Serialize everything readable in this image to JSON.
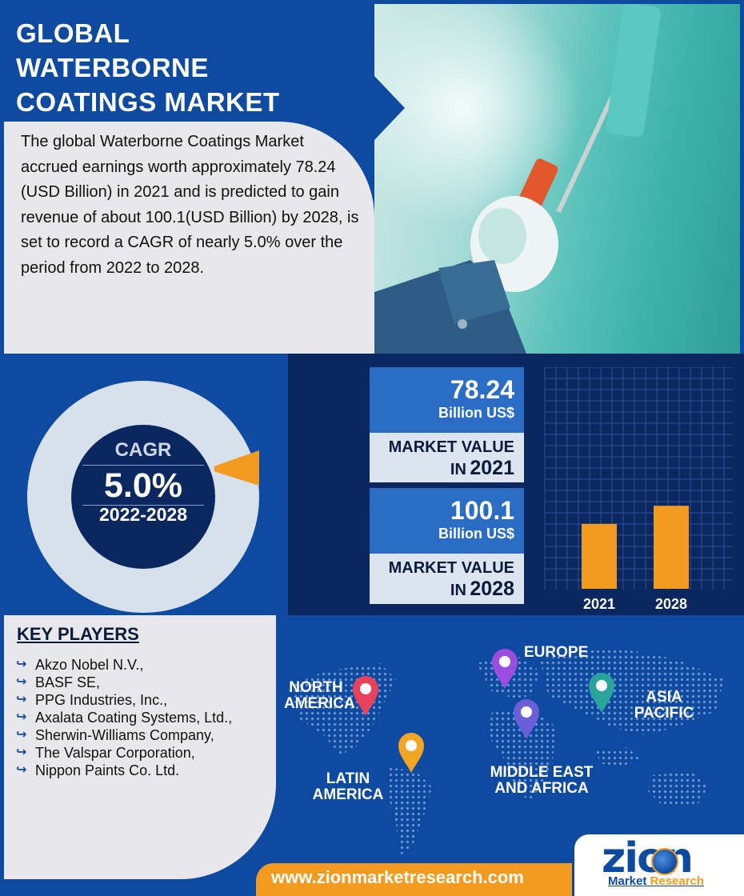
{
  "header": {
    "title_line1": "GLOBAL",
    "title_line2": "WATERBORNE",
    "title_line3": "COATINGS MARKET",
    "description": "The global Waterborne Coatings Market accrued earnings worth approximately 78.24 (USD Billion) in 2021 and is predicted to gain revenue of about 100.1(USD Billion) by 2028, is set to record a CAGR of nearly 5.0% over the period from 2022 to 2028."
  },
  "cagr": {
    "label": "CAGR",
    "value": "5.0%",
    "period": "2022-2028",
    "fraction": 0.05
  },
  "market_values": [
    {
      "value": "78.24",
      "unit": "Billion US$",
      "label": "MARKET VALUE",
      "prefix": "IN",
      "year": "2021"
    },
    {
      "value": "100.1",
      "unit": "Billion US$",
      "label": "MARKET VALUE",
      "prefix": "IN",
      "year": "2028"
    }
  ],
  "chart_data": {
    "type": "bar",
    "categories": [
      "2021",
      "2028"
    ],
    "values": [
      78.24,
      100.1
    ],
    "title": "",
    "xlabel": "",
    "ylabel": "",
    "grid": true,
    "colors": {
      "bar": "#f39a20",
      "grid": "#2c4f93",
      "background": "#0a2760"
    }
  },
  "key_players": {
    "title": "KEY PLAYERS",
    "items": [
      "Akzo Nobel N.V.,",
      "BASF SE,",
      "PPG Industries, Inc.,",
      "Axalata Coating Systems, Ltd.,",
      "Sherwin-Williams Company,",
      "The Valspar Corporation,",
      "Nippon Paints Co. Ltd."
    ]
  },
  "regions": {
    "north_america": "NORTH AMERICA",
    "europe": "EUROPE",
    "asia_pacific": "ASIA PACIFIC",
    "latin_america": "LATIN AMERICA",
    "middle_east_africa": "MIDDLE EAST AND AFRICA"
  },
  "footer": {
    "url": "www.zionmarketresearch.com",
    "logo_main": "zion",
    "logo_sub1": "Market ",
    "logo_sub2": "Research"
  },
  "colors": {
    "primary_blue": "#0e4aa0",
    "dark_navy": "#0a2760",
    "accent_orange": "#f39a20",
    "light_gray": "#e8e8ea",
    "pin_red": "#e8435a",
    "pin_purple": "#9b4de0",
    "pin_teal": "#2aa39a",
    "pin_yellow": "#f2a623",
    "pin_violet": "#6a5fd8"
  }
}
